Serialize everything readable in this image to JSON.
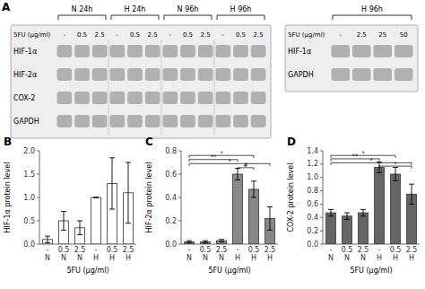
{
  "chart_data": [
    {
      "type": "blot",
      "title": "A",
      "panels": [
        {
          "groups": [
            "N 24h",
            "H 24h",
            "N 96h",
            "H 96h"
          ],
          "xlabel": "5FU (μg/ml)",
          "categories": [
            "-",
            "0.5",
            "2.5",
            "-",
            "0.5",
            "2.5",
            "-",
            "0.5",
            "2.5",
            "-",
            "0.5",
            "2.5"
          ],
          "rows": [
            "HIF-1α",
            "HIF-2α",
            "COX-2",
            "GAPDH"
          ]
        },
        {
          "groups": [
            "H 96h"
          ],
          "xlabel": "5FU (μg/ml)",
          "categories": [
            "-",
            "2.5",
            "25",
            "50"
          ],
          "rows": [
            "HIF-1α",
            "GAPDH"
          ]
        }
      ]
    },
    {
      "type": "bar",
      "title": "B",
      "categories": [
        [
          "-",
          "N"
        ],
        [
          "0.5",
          "N"
        ],
        [
          "2.5",
          "N"
        ],
        [
          "-",
          "H"
        ],
        [
          "0.5",
          "H"
        ],
        [
          "2.5",
          "H"
        ]
      ],
      "values": [
        0.1,
        0.5,
        0.35,
        1.0,
        1.3,
        1.1
      ],
      "errors": [
        0.07,
        0.2,
        0.15,
        0.0,
        0.55,
        0.65
      ],
      "ylabel": "HIF-1α protein level",
      "xlabel": "5FU (μg/ml)",
      "ylim": [
        0.0,
        2.0
      ],
      "yticks": [
        {
          "value": 0.0,
          "label": "0.0"
        },
        0.5,
        {
          "value": 1.0,
          "label": "1.0"
        },
        1.5,
        {
          "value": 2.0,
          "label": "2.0"
        }
      ],
      "color": "#ffffff"
    },
    {
      "type": "bar",
      "title": "C",
      "categories": [
        [
          "-",
          "N"
        ],
        [
          "0.5",
          "N"
        ],
        [
          "2.5",
          "N"
        ],
        [
          "-",
          "H"
        ],
        [
          "0.5",
          "H"
        ],
        [
          "2.5",
          "H"
        ]
      ],
      "values": [
        0.02,
        0.02,
        0.03,
        0.6,
        0.47,
        0.22
      ],
      "errors": [
        0.01,
        0.01,
        0.01,
        0.05,
        0.07,
        0.1
      ],
      "ylabel": "HIF-2α protein level",
      "xlabel": "5FU (μg/ml)",
      "ylim": [
        0.0,
        0.8
      ],
      "yticks": [
        {
          "value": 0.0,
          "label": "0.0"
        },
        0.2,
        0.4,
        0.6,
        0.8
      ],
      "color": "#888888",
      "significance": [
        {
          "x1": 0,
          "x2": 3,
          "y": 0.725,
          "label": "**"
        },
        {
          "x1": 0,
          "x2": 4,
          "y": 0.76,
          "label": "*"
        },
        {
          "x1": 0,
          "x2": 5,
          "y": 0.69,
          "label": "*"
        },
        {
          "x1": 3,
          "x2": 4,
          "y": 0.655,
          "label": "#"
        }
      ]
    },
    {
      "type": "bar",
      "title": "D",
      "categories": [
        [
          "-",
          "N"
        ],
        [
          "0.5",
          "N"
        ],
        [
          "2.5",
          "N"
        ],
        [
          "-",
          "H"
        ],
        [
          "0.5",
          "H"
        ],
        [
          "2.5",
          "H"
        ]
      ],
      "values": [
        0.47,
        0.42,
        0.47,
        1.15,
        1.05,
        0.75
      ],
      "errors": [
        0.05,
        0.05,
        0.05,
        0.08,
        0.1,
        0.15
      ],
      "ylabel": "COX-2 protein level",
      "xlabel": "5FU (μg/ml)",
      "ylim": [
        0.0,
        1.4
      ],
      "yticks": [
        {
          "value": 0.0,
          "label": "0.0"
        },
        0.2,
        0.4,
        0.6,
        0.8,
        {
          "value": 1.0,
          "label": "1.0"
        },
        1.2,
        1.4
      ],
      "color": "#666666",
      "significance": [
        {
          "x1": 0,
          "x2": 3,
          "y": 1.28,
          "label": "**"
        },
        {
          "x1": 0,
          "x2": 4,
          "y": 1.33,
          "label": "*"
        },
        {
          "x1": 0,
          "x2": 5,
          "y": 1.22,
          "label": "*"
        },
        {
          "x1": 3,
          "x2": 5,
          "y": 1.17,
          "label": "*"
        }
      ]
    }
  ]
}
